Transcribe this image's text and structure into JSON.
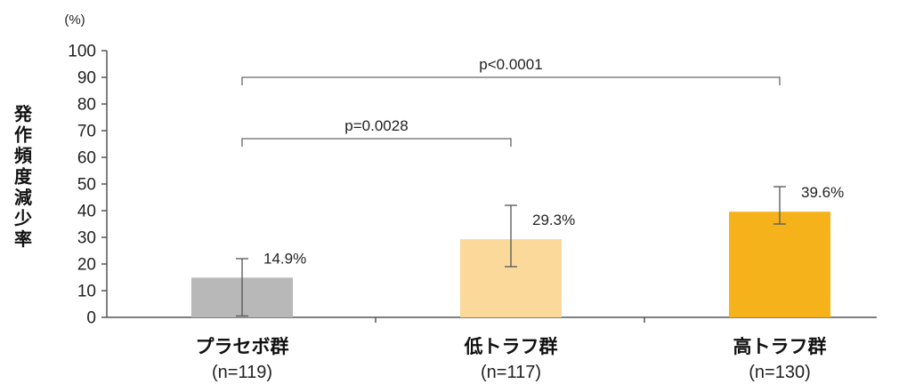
{
  "chart_data": {
    "type": "bar",
    "title": "",
    "unit": "(%)",
    "ylabel": "発作頻度減少率",
    "ylim": [
      0,
      100
    ],
    "yticks": [
      0,
      10,
      20,
      30,
      40,
      50,
      60,
      70,
      80,
      90,
      100
    ],
    "grid": false,
    "legend": "none",
    "categories": [
      "プラセボ群",
      "低トラフ群",
      "高トラフ群"
    ],
    "n_labels": [
      "(n=119)",
      "(n=117)",
      "(n=130)"
    ],
    "values": [
      14.9,
      29.3,
      39.6
    ],
    "value_labels": [
      "14.9%",
      "29.3%",
      "39.6%"
    ],
    "error_bars": [
      {
        "low": 0.5,
        "high": 22
      },
      {
        "low": 19,
        "high": 42
      },
      {
        "low": 35,
        "high": 49
      }
    ],
    "colors": [
      "#b8b8b8",
      "#fad99a",
      "#f5b21a"
    ],
    "annotations": [
      {
        "type": "bracket",
        "from": 0,
        "to": 1,
        "y": 67,
        "text": "p=0.0028"
      },
      {
        "type": "bracket",
        "from": 0,
        "to": 2,
        "y": 90,
        "text": "p<0.0001"
      }
    ]
  }
}
